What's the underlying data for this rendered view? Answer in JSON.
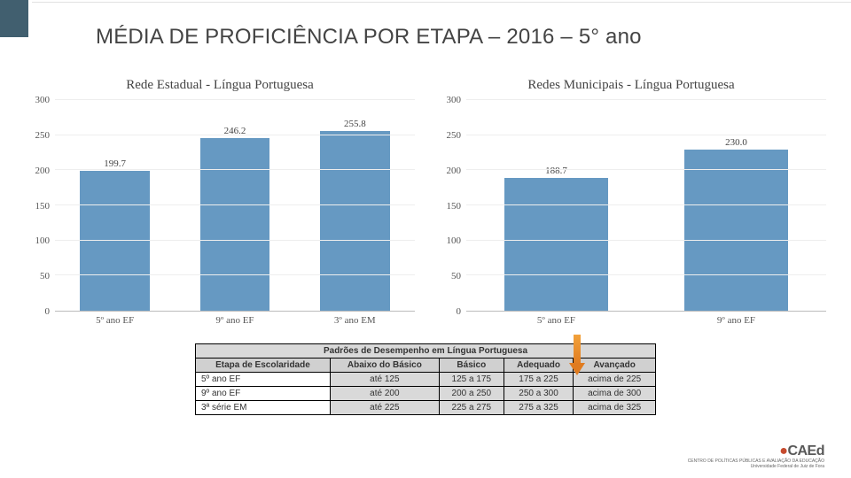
{
  "title": "MÉDIA DE PROFICIÊNCIA POR ETAPA – 2016 – 5° ano",
  "charts": {
    "ymax": 300,
    "ytick_step": 50,
    "bar_color": "#6699c2",
    "grid_color": "#eeeeee",
    "axis_color": "#bbbbbb",
    "title_fontsize": 15,
    "tick_fontsize": 11,
    "left": {
      "title": "Rede Estadual - Língua Portuguesa",
      "categories": [
        "5º ano EF",
        "9º ano EF",
        "3º ano EM"
      ],
      "values": [
        199.7,
        246.2,
        255.8
      ]
    },
    "right": {
      "title": "Redes Municipais - Língua Portuguesa",
      "categories": [
        "5º ano EF",
        "9º ano EF"
      ],
      "values": [
        188.7,
        230.0
      ]
    }
  },
  "table": {
    "title": "Padrões de Desempenho em Língua Portuguesa",
    "row_header": "Etapa de Escolaridade",
    "columns": [
      "Abaixo do Básico",
      "Básico",
      "Adequado",
      "Avançado"
    ],
    "rows": [
      {
        "label": "5º ano EF",
        "cells": [
          "até 125",
          "125 a 175",
          "175 a 225",
          "acima de 225"
        ]
      },
      {
        "label": "9º ano EF",
        "cells": [
          "até 200",
          "200 a 250",
          "250 a 300",
          "acima de 300"
        ]
      },
      {
        "label": "3ª série EM",
        "cells": [
          "até 225",
          "225 a 275",
          "275 a 325",
          "acima de 325"
        ]
      }
    ],
    "header_bg": "#d0d0d0",
    "cell_bg": "#d9d9d9",
    "border_color": "#000000",
    "fontsize": 10
  },
  "logo": {
    "brand": "CAEd",
    "line1": "CENTRO DE POLÍTICAS PÚBLICAS E AVALIAÇÃO DA EDUCAÇÃO",
    "line2": "Universidade Federal de Juiz de Fora"
  },
  "arrow": {
    "color_top": "#f2a23c",
    "color_bottom": "#e07b1f"
  }
}
